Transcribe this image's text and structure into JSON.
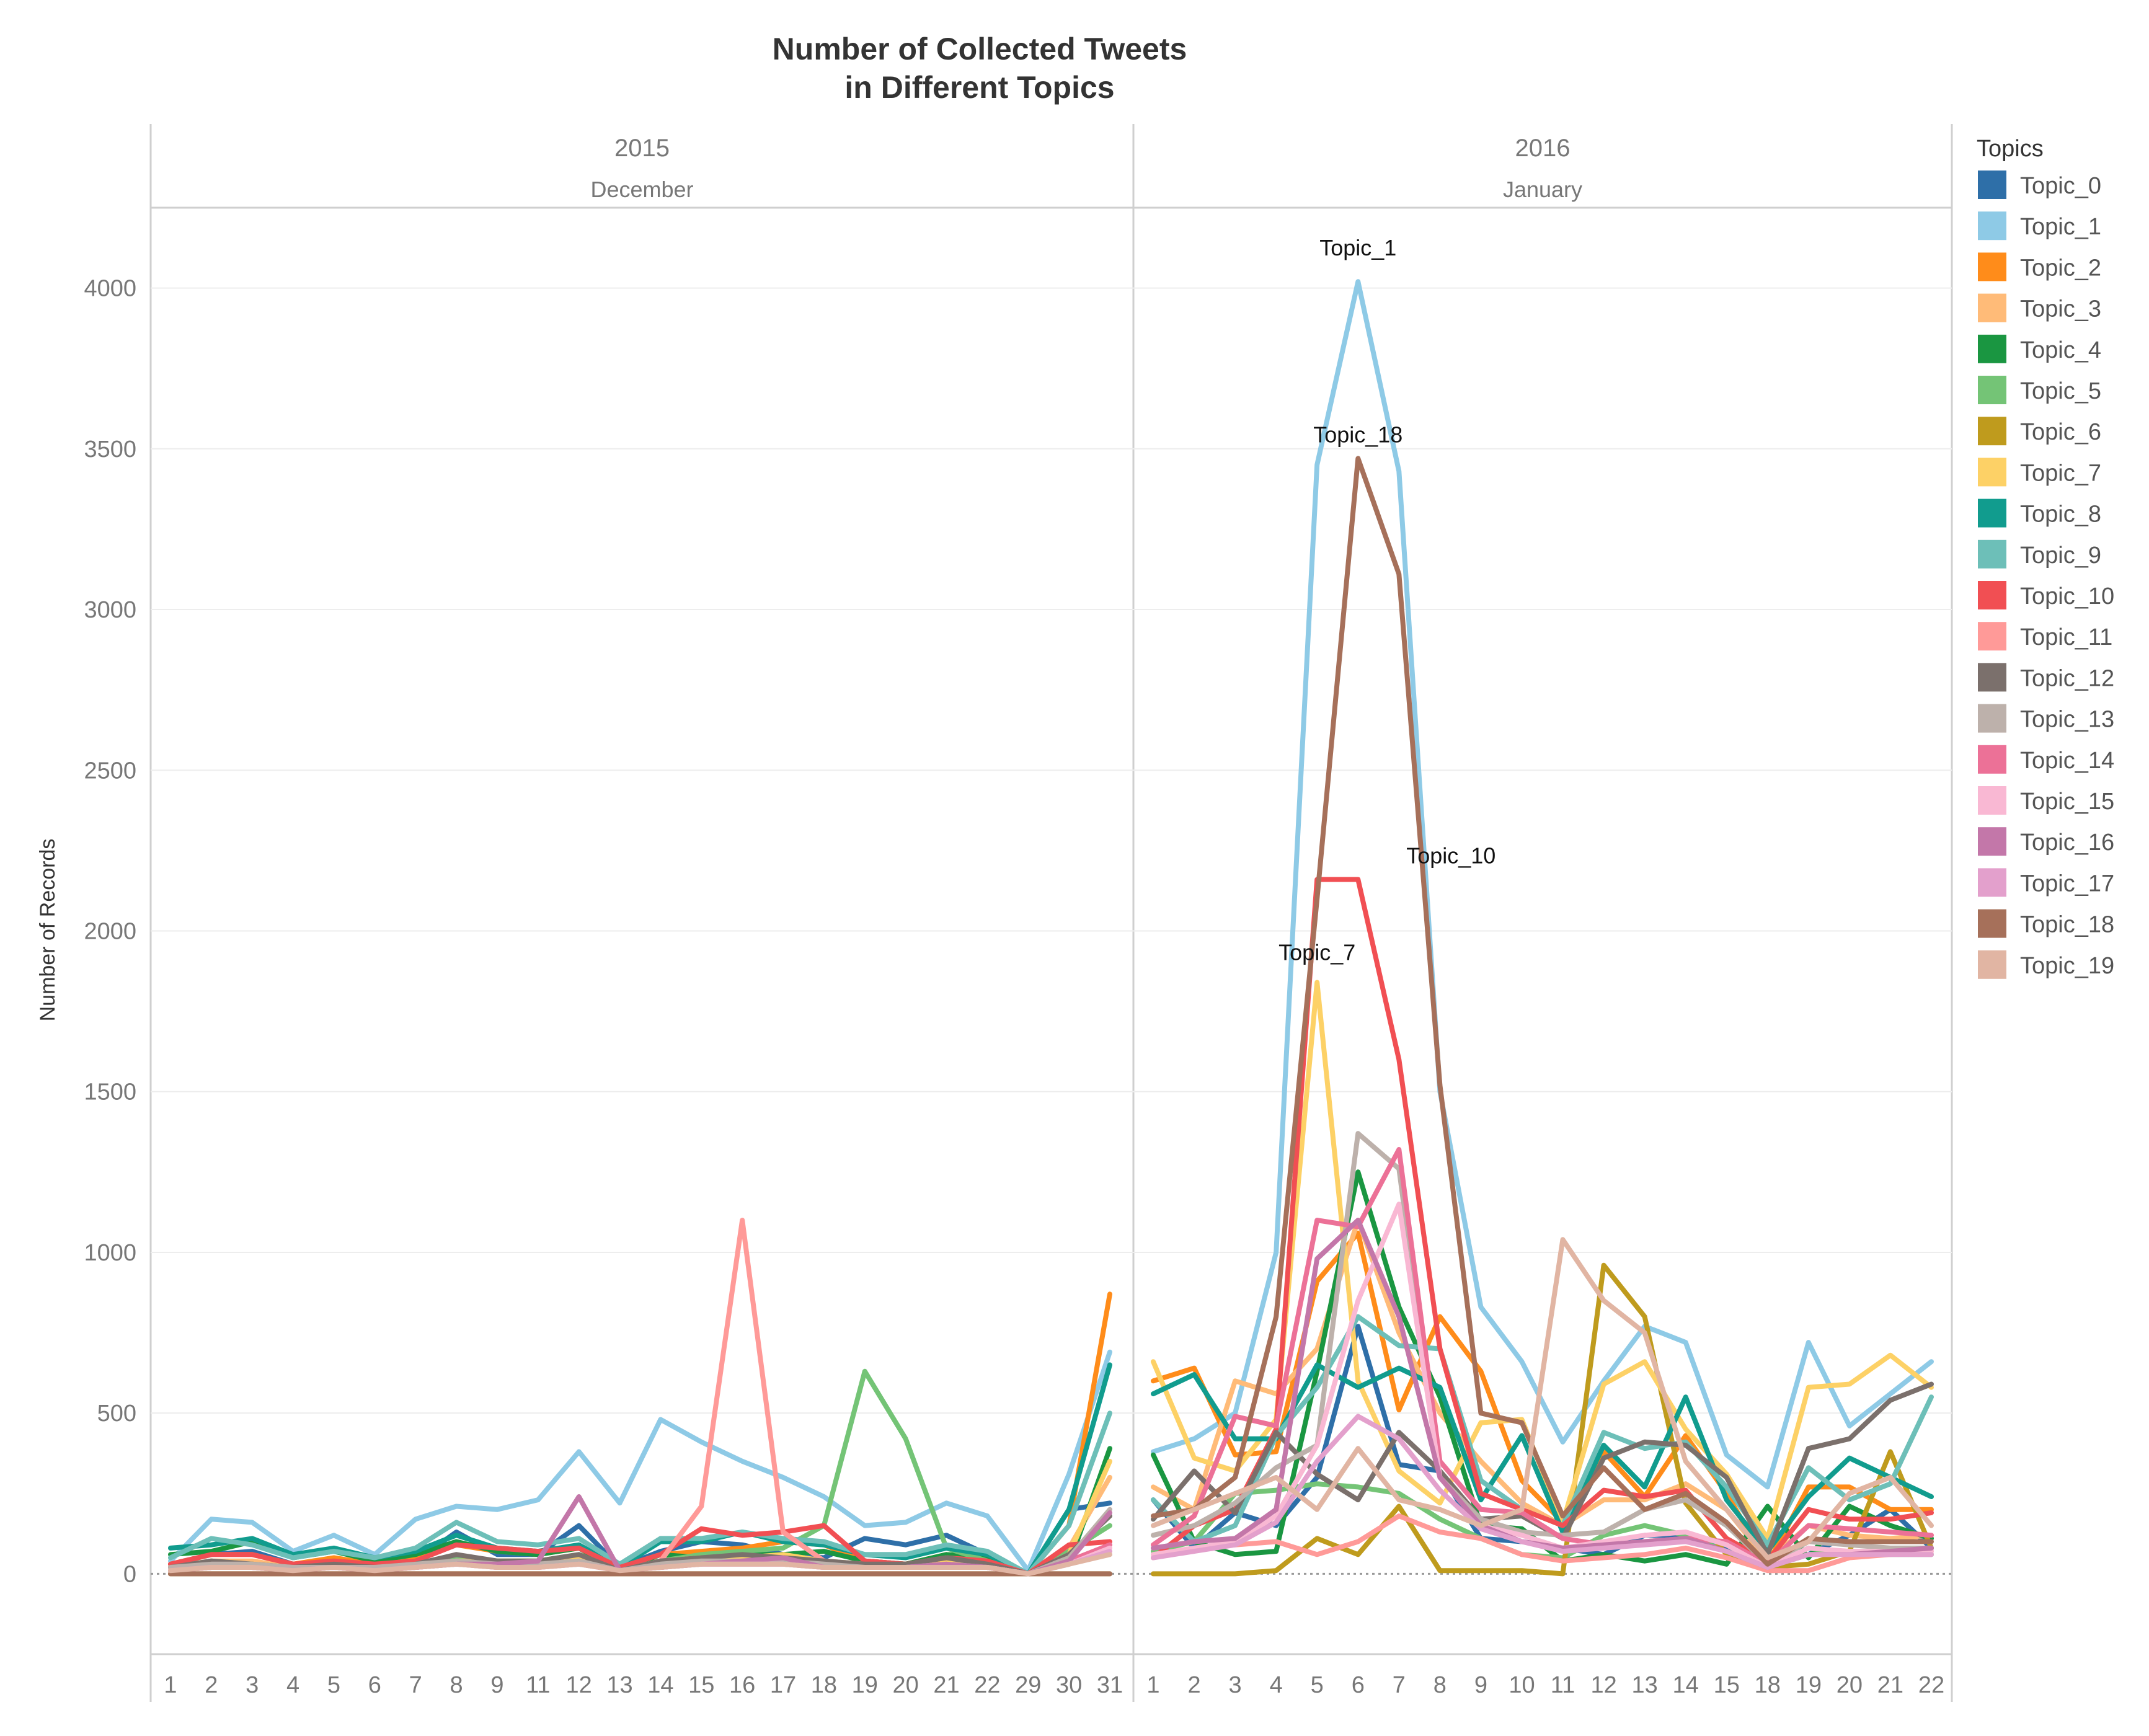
{
  "chart_data": {
    "type": "line",
    "title": "Number of Collected Tweets\nin Different Topics",
    "ylabel": "Number of Records",
    "ylim": [
      -250,
      4250
    ],
    "yticks": [
      0,
      500,
      1000,
      1500,
      2000,
      2500,
      3000,
      3500,
      4000
    ],
    "legend_title": "Topics",
    "legend_position": "right",
    "panels": [
      {
        "year": "2015",
        "month": "December",
        "days": [
          "1",
          "2",
          "3",
          "4",
          "5",
          "6",
          "7",
          "8",
          "9",
          "11",
          "12",
          "13",
          "14",
          "15",
          "16",
          "17",
          "18",
          "19",
          "20",
          "21",
          "22",
          "29",
          "30",
          "31"
        ]
      },
      {
        "year": "2016",
        "month": "January",
        "days": [
          "1",
          "2",
          "3",
          "4",
          "5",
          "6",
          "7",
          "8",
          "9",
          "10",
          "11",
          "12",
          "13",
          "14",
          "15",
          "18",
          "19",
          "20",
          "21",
          "22"
        ]
      }
    ],
    "annotations": [
      {
        "text": "Topic_1",
        "series": "Topic_1",
        "panel": 1,
        "day": "6"
      },
      {
        "text": "Topic_18",
        "series": "Topic_18",
        "panel": 1,
        "day": "6"
      },
      {
        "text": "Topic_10",
        "series": "Topic_10",
        "panel": 1,
        "day": "6"
      },
      {
        "text": "Topic_7",
        "series": "Topic_7",
        "panel": 1,
        "day": "5"
      }
    ],
    "series": [
      {
        "name": "Topic_0",
        "color": "#2e6fa8",
        "dec": [
          30,
          60,
          70,
          30,
          40,
          20,
          40,
          130,
          60,
          60,
          150,
          20,
          70,
          100,
          90,
          60,
          50,
          110,
          90,
          120,
          60,
          0,
          200,
          220
        ],
        "jan": [
          230,
          80,
          190,
          150,
          300,
          770,
          340,
          320,
          110,
          100,
          80,
          60,
          120,
          120,
          80,
          20,
          60,
          120,
          200,
          80
        ]
      },
      {
        "name": "Topic_1",
        "color": "#8ecae6",
        "dec": [
          40,
          170,
          160,
          70,
          120,
          60,
          170,
          210,
          200,
          230,
          380,
          220,
          480,
          410,
          350,
          300,
          240,
          150,
          160,
          220,
          180,
          10,
          310,
          690
        ],
        "jan": [
          380,
          420,
          500,
          1000,
          3450,
          4020,
          3430,
          1500,
          830,
          660,
          410,
          600,
          770,
          720,
          370,
          270,
          720,
          460,
          560,
          660
        ]
      },
      {
        "name": "Topic_2",
        "color": "#ff8c1a",
        "dec": [
          30,
          60,
          60,
          30,
          50,
          30,
          50,
          90,
          70,
          60,
          80,
          20,
          60,
          70,
          80,
          100,
          90,
          40,
          30,
          60,
          50,
          0,
          150,
          870
        ],
        "jan": [
          600,
          640,
          370,
          380,
          910,
          1060,
          510,
          800,
          630,
          290,
          160,
          380,
          240,
          430,
          250,
          30,
          270,
          270,
          200,
          200
        ]
      },
      {
        "name": "Topic_3",
        "color": "#ffbb78",
        "dec": [
          20,
          40,
          40,
          20,
          30,
          20,
          30,
          50,
          40,
          40,
          60,
          20,
          40,
          50,
          50,
          60,
          40,
          30,
          30,
          40,
          30,
          0,
          80,
          300
        ],
        "jan": [
          270,
          200,
          600,
          560,
          700,
          1100,
          750,
          500,
          350,
          220,
          150,
          230,
          230,
          280,
          200,
          40,
          150,
          120,
          110,
          120
        ]
      },
      {
        "name": "Topic_4",
        "color": "#1a9641",
        "dec": [
          60,
          70,
          100,
          50,
          70,
          40,
          60,
          100,
          70,
          60,
          80,
          10,
          60,
          50,
          60,
          60,
          70,
          40,
          30,
          60,
          50,
          0,
          30,
          390
        ],
        "jan": [
          370,
          100,
          60,
          70,
          630,
          1250,
          830,
          550,
          150,
          140,
          40,
          60,
          40,
          60,
          30,
          210,
          50,
          210,
          150,
          110
        ]
      },
      {
        "name": "Topic_5",
        "color": "#74c476",
        "dec": [
          20,
          40,
          30,
          20,
          30,
          20,
          30,
          50,
          40,
          40,
          60,
          10,
          40,
          60,
          70,
          80,
          150,
          630,
          420,
          80,
          40,
          0,
          70,
          150
        ],
        "jan": [
          70,
          100,
          250,
          260,
          280,
          270,
          250,
          170,
          110,
          60,
          50,
          120,
          150,
          120,
          70,
          20,
          80,
          60,
          60,
          60
        ]
      },
      {
        "name": "Topic_6",
        "color": "#bf9b1d",
        "dec": [
          0,
          0,
          0,
          0,
          0,
          0,
          0,
          0,
          0,
          0,
          0,
          0,
          0,
          0,
          0,
          0,
          0,
          0,
          0,
          0,
          0,
          0,
          0,
          0
        ],
        "jan": [
          0,
          0,
          0,
          10,
          110,
          60,
          210,
          10,
          10,
          10,
          0,
          960,
          800,
          220,
          60,
          20,
          30,
          70,
          380,
          80
        ]
      },
      {
        "name": "Topic_7",
        "color": "#fdd166",
        "dec": [
          20,
          40,
          30,
          20,
          30,
          20,
          30,
          40,
          40,
          40,
          50,
          10,
          40,
          50,
          50,
          60,
          40,
          30,
          30,
          40,
          30,
          0,
          60,
          350
        ],
        "jan": [
          660,
          360,
          320,
          480,
          1840,
          600,
          320,
          220,
          470,
          480,
          160,
          590,
          660,
          450,
          310,
          110,
          580,
          590,
          680,
          580
        ]
      },
      {
        "name": "Topic_8",
        "color": "#119c8e",
        "dec": [
          80,
          90,
          110,
          60,
          80,
          50,
          70,
          120,
          80,
          70,
          90,
          20,
          100,
          100,
          130,
          100,
          90,
          60,
          50,
          80,
          60,
          0,
          200,
          650
        ],
        "jan": [
          560,
          620,
          420,
          420,
          650,
          580,
          640,
          580,
          230,
          430,
          130,
          400,
          270,
          550,
          230,
          70,
          240,
          360,
          300,
          240
        ]
      },
      {
        "name": "Topic_9",
        "color": "#6dbfb8",
        "dec": [
          50,
          110,
          90,
          50,
          70,
          50,
          80,
          160,
          100,
          90,
          110,
          30,
          110,
          110,
          130,
          110,
          100,
          60,
          60,
          90,
          70,
          0,
          150,
          500
        ],
        "jan": [
          230,
          100,
          150,
          430,
          580,
          800,
          710,
          700,
          290,
          200,
          150,
          440,
          390,
          410,
          270,
          90,
          330,
          230,
          280,
          550
        ]
      },
      {
        "name": "Topic_10",
        "color": "#f14f53",
        "dec": [
          30,
          60,
          60,
          30,
          40,
          30,
          40,
          90,
          80,
          70,
          80,
          20,
          60,
          140,
          120,
          130,
          150,
          40,
          30,
          50,
          40,
          0,
          90,
          100
        ],
        "jan": [
          50,
          150,
          200,
          450,
          2160,
          2160,
          1600,
          700,
          250,
          200,
          150,
          260,
          240,
          260,
          110,
          40,
          200,
          170,
          170,
          190
        ]
      },
      {
        "name": "Topic_11",
        "color": "#ff9a98",
        "dec": [
          10,
          20,
          20,
          10,
          20,
          10,
          20,
          30,
          30,
          30,
          40,
          10,
          40,
          210,
          1100,
          130,
          40,
          20,
          20,
          30,
          20,
          0,
          40,
          90
        ],
        "jan": [
          60,
          80,
          90,
          100,
          60,
          100,
          180,
          130,
          110,
          60,
          40,
          50,
          60,
          80,
          50,
          10,
          10,
          50,
          60,
          70
        ]
      },
      {
        "name": "Topic_12",
        "color": "#7b706c",
        "dec": [
          20,
          40,
          30,
          20,
          30,
          20,
          30,
          60,
          40,
          40,
          60,
          10,
          40,
          50,
          60,
          50,
          40,
          30,
          30,
          50,
          30,
          0,
          60,
          180
        ],
        "jan": [
          170,
          320,
          190,
          440,
          310,
          230,
          440,
          320,
          170,
          180,
          110,
          360,
          410,
          400,
          300,
          60,
          390,
          420,
          540,
          590
        ]
      },
      {
        "name": "Topic_13",
        "color": "#bdb1ab",
        "dec": [
          20,
          30,
          30,
          20,
          20,
          20,
          30,
          40,
          30,
          30,
          40,
          10,
          30,
          40,
          40,
          40,
          30,
          20,
          20,
          30,
          20,
          0,
          50,
          200
        ],
        "jan": [
          120,
          150,
          220,
          330,
          400,
          1370,
          1260,
          300,
          170,
          130,
          120,
          130,
          200,
          230,
          150,
          30,
          100,
          90,
          80,
          80
        ]
      },
      {
        "name": "Topic_14",
        "color": "#ec7197",
        "dec": [
          10,
          20,
          20,
          10,
          20,
          10,
          20,
          30,
          20,
          20,
          30,
          10,
          20,
          30,
          30,
          30,
          20,
          20,
          20,
          20,
          20,
          0,
          40,
          90
        ],
        "jan": [
          90,
          180,
          490,
          460,
          1100,
          1080,
          1320,
          350,
          200,
          190,
          110,
          90,
          100,
          110,
          100,
          30,
          150,
          140,
          130,
          120
        ]
      },
      {
        "name": "Topic_15",
        "color": "#f9b8d3",
        "dec": [
          10,
          20,
          20,
          10,
          20,
          10,
          20,
          30,
          20,
          20,
          30,
          10,
          20,
          30,
          30,
          30,
          20,
          20,
          20,
          20,
          20,
          0,
          30,
          80
        ],
        "jan": [
          60,
          80,
          100,
          180,
          400,
          850,
          1150,
          300,
          150,
          120,
          80,
          100,
          120,
          130,
          90,
          20,
          80,
          70,
          70,
          70
        ]
      },
      {
        "name": "Topic_16",
        "color": "#c377a9",
        "dec": [
          10,
          20,
          20,
          10,
          20,
          10,
          20,
          30,
          30,
          40,
          240,
          10,
          20,
          30,
          40,
          50,
          20,
          20,
          20,
          30,
          20,
          0,
          40,
          190
        ],
        "jan": [
          80,
          100,
          110,
          200,
          980,
          1100,
          800,
          300,
          150,
          100,
          80,
          90,
          100,
          110,
          70,
          20,
          60,
          60,
          70,
          80
        ]
      },
      {
        "name": "Topic_17",
        "color": "#e3a0cc",
        "dec": [
          10,
          20,
          20,
          10,
          20,
          10,
          20,
          30,
          20,
          20,
          30,
          10,
          20,
          30,
          30,
          30,
          20,
          20,
          20,
          20,
          20,
          0,
          30,
          70
        ],
        "jan": [
          50,
          70,
          90,
          160,
          350,
          490,
          420,
          260,
          140,
          100,
          70,
          80,
          90,
          100,
          70,
          20,
          60,
          60,
          60,
          60
        ]
      },
      {
        "name": "Topic_18",
        "color": "#a6705a",
        "dec": [
          0,
          0,
          0,
          0,
          0,
          0,
          0,
          0,
          0,
          0,
          0,
          0,
          0,
          0,
          0,
          0,
          0,
          0,
          0,
          0,
          0,
          0,
          0,
          0
        ],
        "jan": [
          180,
          200,
          300,
          800,
          2100,
          3470,
          3110,
          1520,
          500,
          470,
          180,
          330,
          200,
          250,
          160,
          30,
          110,
          100,
          100,
          100
        ]
      },
      {
        "name": "Topic_19",
        "color": "#e1b5a3",
        "dec": [
          10,
          20,
          20,
          10,
          20,
          10,
          20,
          30,
          20,
          20,
          30,
          10,
          20,
          30,
          30,
          30,
          20,
          20,
          20,
          20,
          20,
          0,
          30,
          60
        ],
        "jan": [
          150,
          200,
          250,
          300,
          200,
          390,
          230,
          200,
          150,
          200,
          1040,
          850,
          750,
          350,
          200,
          50,
          100,
          250,
          300,
          150
        ]
      }
    ]
  }
}
